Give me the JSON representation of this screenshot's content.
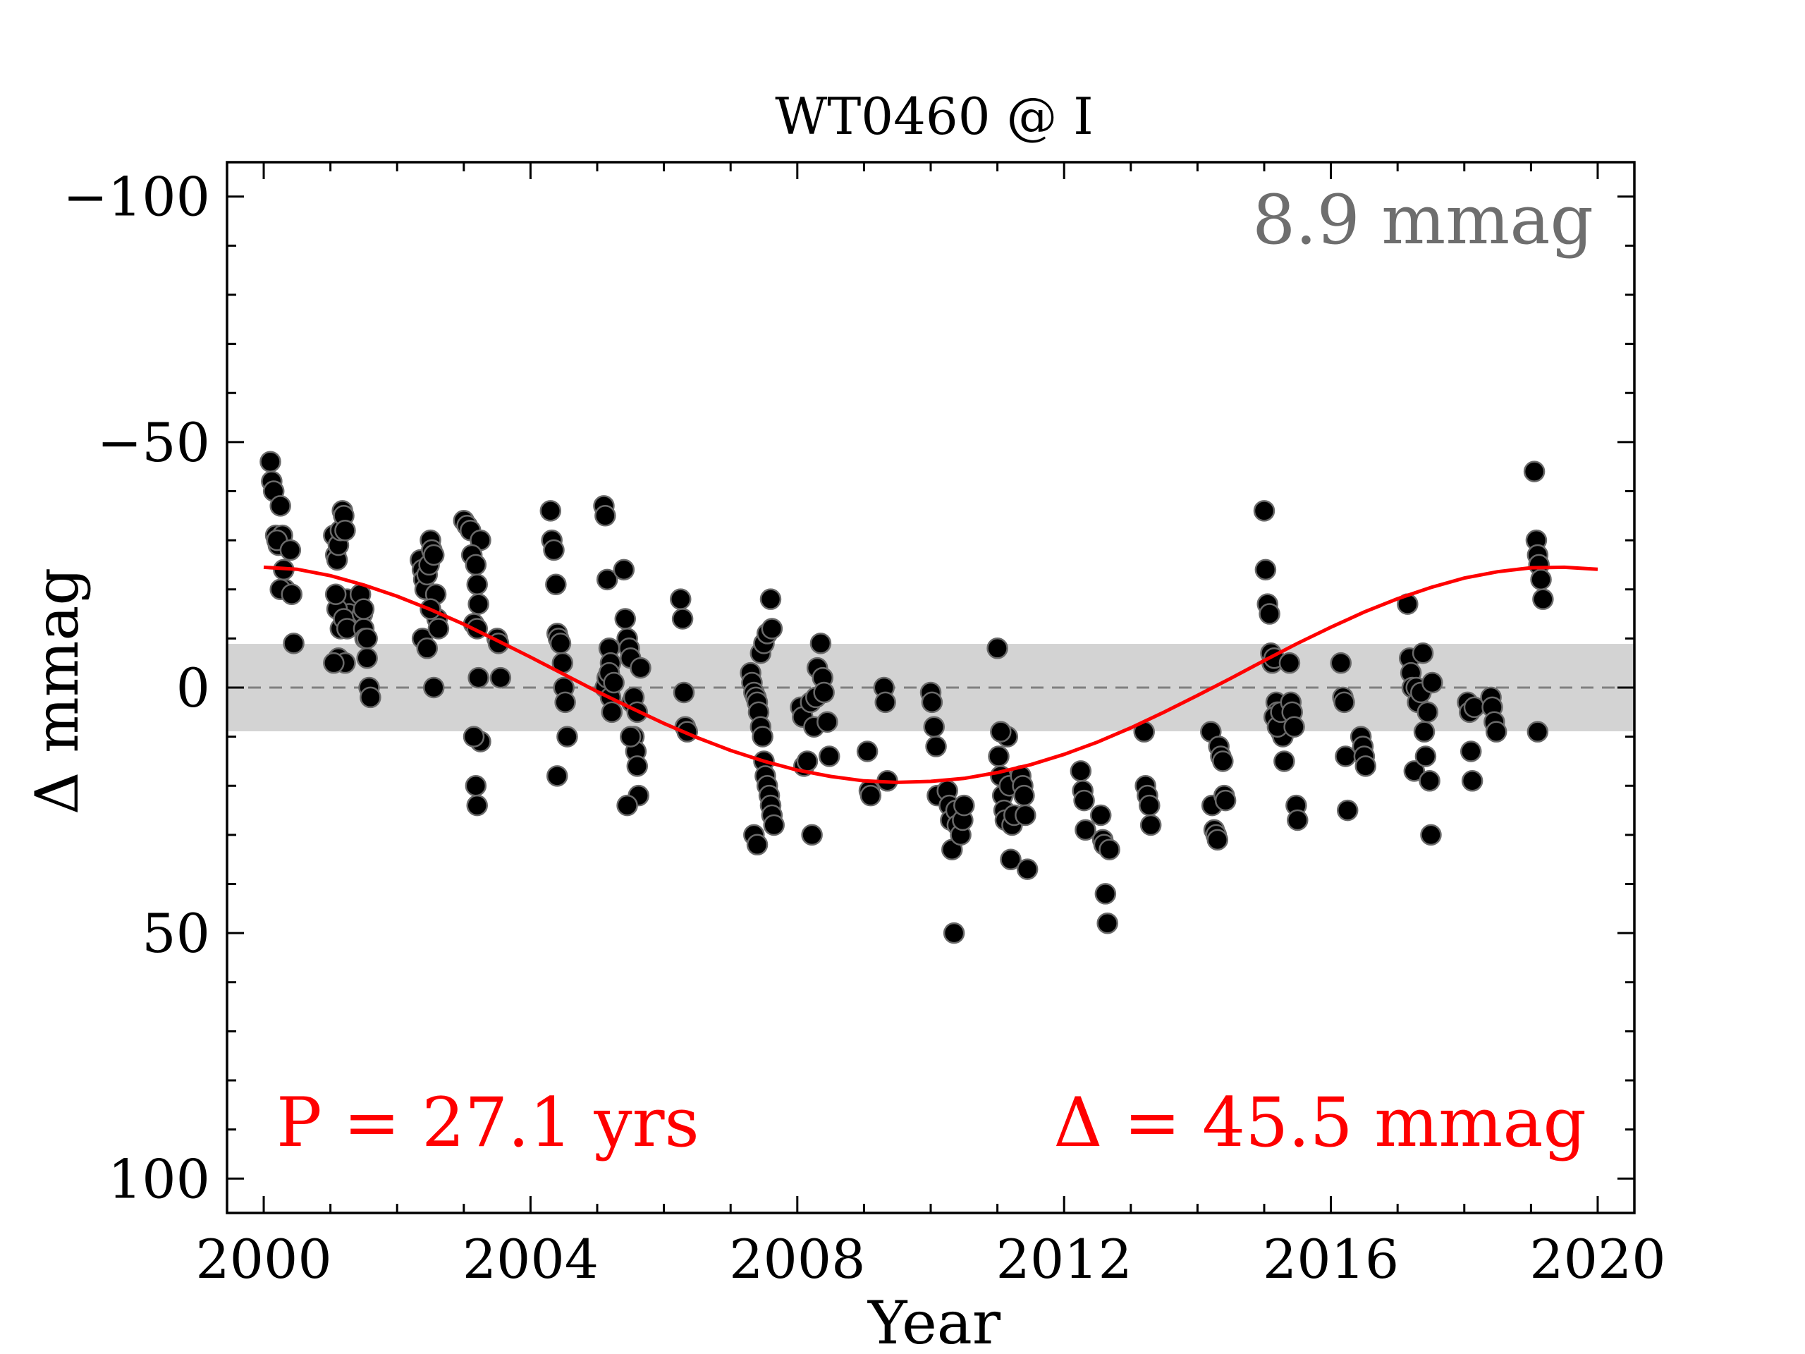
{
  "chart_data": {
    "type": "scatter",
    "title": "WT0460 @ I",
    "xlabel": "Year",
    "ylabel": "Δ  mmag",
    "xlim": [
      1999.45,
      2020.55
    ],
    "ylim": [
      107,
      -107
    ],
    "y_inverted": true,
    "x_ticks": [
      2000,
      2004,
      2008,
      2012,
      2016,
      2020
    ],
    "x_tick_labels": [
      "2000",
      "2004",
      "2008",
      "2012",
      "2016",
      "2020"
    ],
    "y_ticks": [
      -100,
      -50,
      0,
      50,
      100
    ],
    "y_tick_labels": [
      "−100",
      "−50",
      "0",
      "50",
      "100"
    ],
    "grid": false,
    "band": {
      "low": -8.9,
      "high": 8.9,
      "label": "8.9 mmag",
      "color": "#d3d3d3",
      "label_color": "#6e6e6e"
    },
    "zero_line": {
      "y": 0,
      "color": "#808080",
      "style": "dashed"
    },
    "fit": {
      "color": "#ff0000",
      "period_label": "P = 27.1 yrs",
      "amplitude_label": "Δ = 45.5 mmag",
      "x": [
        2000.0,
        2000.5,
        2001.0,
        2001.5,
        2002.0,
        2002.5,
        2003.0,
        2003.5,
        2004.0,
        2004.5,
        2005.0,
        2005.5,
        2006.0,
        2006.5,
        2007.0,
        2007.5,
        2008.0,
        2008.5,
        2009.0,
        2009.5,
        2010.0,
        2010.5,
        2011.0,
        2011.5,
        2012.0,
        2012.5,
        2013.0,
        2013.5,
        2014.0,
        2014.5,
        2015.0,
        2015.5,
        2016.0,
        2016.5,
        2017.0,
        2017.5,
        2018.0,
        2018.5,
        2019.0,
        2019.5,
        2020.0
      ],
      "y": [
        -24.5,
        -24.1,
        -22.8,
        -20.9,
        -18.6,
        -15.9,
        -12.9,
        -9.6,
        -6.2,
        -2.7,
        0.8,
        4.1,
        7.3,
        10.2,
        12.8,
        15.0,
        16.8,
        18.1,
        19.0,
        19.3,
        19.1,
        18.5,
        17.3,
        15.7,
        13.6,
        11.1,
        8.2,
        5.0,
        1.6,
        -1.9,
        -5.5,
        -9.0,
        -12.3,
        -15.4,
        -18.1,
        -20.4,
        -22.3,
        -23.6,
        -24.4,
        -24.5,
        -24.1
      ]
    },
    "series": [
      {
        "marker_color": "#000000",
        "x": [
          2000.1,
          2000.12,
          2000.15,
          2000.18,
          2000.2,
          2000.22,
          2000.25,
          2000.28,
          2000.3,
          2000.32,
          2000.2,
          2000.25,
          2000.4,
          2000.42,
          2000.45,
          2001.05,
          2001.08,
          2001.1,
          2001.12,
          2001.15,
          2001.18,
          2001.2,
          2001.22,
          2001.25,
          2001.28,
          2001.3,
          2001.1,
          2001.15,
          2001.2,
          2001.25,
          2001.12,
          2001.22,
          2001.05,
          2001.08,
          2001.45,
          2001.48,
          2001.5,
          2001.52,
          2001.55,
          2001.58,
          2001.6,
          2001.5,
          2001.55,
          2002.35,
          2002.38,
          2002.4,
          2002.42,
          2002.45,
          2002.48,
          2002.5,
          2002.52,
          2002.55,
          2002.58,
          2002.6,
          2002.38,
          2002.45,
          2002.5,
          2002.55,
          2002.62,
          2003.0,
          2003.05,
          2003.1,
          2003.15,
          2003.2,
          2003.22,
          2003.25,
          2003.12,
          2003.18,
          2003.2,
          2003.22,
          2003.25,
          2003.15,
          2003.18,
          2003.2,
          2003.5,
          2003.52,
          2003.55,
          2004.3,
          2004.32,
          2004.35,
          2004.38,
          2004.4,
          2004.42,
          2004.45,
          2004.48,
          2004.5,
          2004.52,
          2004.55,
          2004.4,
          2005.1,
          2005.12,
          2005.15,
          2005.18,
          2005.2,
          2005.12,
          2005.15,
          2005.18,
          2005.2,
          2005.22,
          2005.25,
          2005.4,
          2005.42,
          2005.45,
          2005.48,
          2005.5,
          2005.52,
          2005.55,
          2005.58,
          2005.6,
          2005.62,
          2005.45,
          2005.5,
          2005.55,
          2005.6,
          2005.65,
          2006.25,
          2006.28,
          2006.3,
          2006.32,
          2006.35,
          2007.3,
          2007.32,
          2007.35,
          2007.38,
          2007.4,
          2007.42,
          2007.45,
          2007.48,
          2007.5,
          2007.52,
          2007.55,
          2007.58,
          2007.6,
          2007.62,
          2007.65,
          2007.35,
          2007.4,
          2007.45,
          2007.5,
          2007.55,
          2007.6,
          2007.62,
          2008.05,
          2008.08,
          2008.1,
          2008.15,
          2008.2,
          2008.25,
          2008.28,
          2008.3,
          2008.35,
          2008.38,
          2008.4,
          2008.45,
          2008.48,
          2008.22,
          2009.05,
          2009.08,
          2009.1,
          2009.3,
          2009.32,
          2009.35,
          2010.0,
          2010.02,
          2010.05,
          2010.08,
          2010.1,
          2010.25,
          2010.28,
          2010.3,
          2010.32,
          2010.35,
          2010.38,
          2010.4,
          2010.45,
          2010.48,
          2010.5,
          2011.0,
          2011.02,
          2011.05,
          2011.08,
          2011.1,
          2011.12,
          2011.15,
          2011.18,
          2011.2,
          2011.22,
          2011.25,
          2011.05,
          2011.35,
          2011.38,
          2011.4,
          2011.42,
          2011.45,
          2012.25,
          2012.28,
          2012.3,
          2012.32,
          2012.55,
          2012.58,
          2012.6,
          2012.62,
          2012.65,
          2012.68,
          2013.2,
          2013.22,
          2013.25,
          2013.28,
          2013.3,
          2014.2,
          2014.22,
          2014.25,
          2014.28,
          2014.3,
          2014.32,
          2014.35,
          2014.38,
          2014.4,
          2014.42,
          2015.0,
          2015.02,
          2015.05,
          2015.08,
          2015.1,
          2015.12,
          2015.15,
          2015.18,
          2015.2,
          2015.22,
          2015.25,
          2015.28,
          2015.3,
          2015.15,
          2015.2,
          2015.25,
          2015.38,
          2015.4,
          2015.42,
          2015.45,
          2015.48,
          2015.5,
          2016.15,
          2016.18,
          2016.2,
          2016.22,
          2016.25,
          2016.45,
          2016.48,
          2016.5,
          2016.52,
          2017.15,
          2017.18,
          2017.2,
          2017.22,
          2017.25,
          2017.28,
          2017.3,
          2017.35,
          2017.38,
          2017.4,
          2017.42,
          2017.45,
          2017.48,
          2017.5,
          2017.52,
          2018.05,
          2018.08,
          2018.1,
          2018.12,
          2018.15,
          2018.4,
          2018.42,
          2018.45,
          2018.48,
          2019.05,
          2019.08,
          2019.1,
          2019.12,
          2019.15,
          2019.18,
          2019.1
        ],
        "y": [
          -46,
          -42,
          -40,
          -31,
          -30,
          -29,
          -37,
          -31,
          -24,
          -20,
          -30,
          -20,
          -28,
          -19,
          -9,
          -31,
          -27,
          -26,
          -29,
          -32,
          -36,
          -35,
          -32,
          -18,
          -15,
          -13,
          -16,
          -12,
          -14,
          -12,
          -6,
          -5,
          -5,
          -19,
          -19,
          -15,
          -12,
          -10,
          -6,
          0,
          2,
          -16,
          -10,
          -26,
          -24,
          -22,
          -20,
          -23,
          -25,
          -30,
          -28,
          -27,
          -19,
          -14,
          -10,
          -8,
          -16,
          0,
          -12,
          -34,
          -33,
          -32,
          -13,
          -12,
          -2,
          -30,
          -27,
          -25,
          -21,
          -17,
          11,
          10,
          20,
          24,
          -10,
          -9,
          -2,
          -36,
          -30,
          -28,
          -21,
          -11,
          -10,
          -9,
          -5,
          0,
          3,
          10,
          18,
          -37,
          -35,
          -22,
          -8,
          -5,
          0,
          -2,
          -3,
          2,
          5,
          -1,
          -24,
          -14,
          -10,
          -8,
          -6,
          3,
          10,
          13,
          16,
          22,
          24,
          10,
          2,
          5,
          -4,
          -18,
          -14,
          1,
          8,
          9,
          -3,
          -1,
          1,
          2,
          3,
          5,
          8,
          10,
          15,
          18,
          20,
          22,
          24,
          26,
          28,
          30,
          32,
          -7,
          -9,
          -11,
          -18,
          -12,
          4,
          6,
          16,
          15,
          3,
          8,
          2,
          -4,
          -9,
          -2,
          1,
          7,
          14,
          30,
          13,
          21,
          22,
          0,
          3,
          19,
          1,
          3,
          8,
          12,
          22,
          21,
          24,
          27,
          33,
          50,
          25,
          28,
          30,
          27,
          24,
          -8,
          14,
          18,
          22,
          25,
          27,
          10,
          20,
          35,
          28,
          26,
          9,
          18,
          20,
          22,
          26,
          37,
          17,
          21,
          23,
          29,
          26,
          31,
          32,
          42,
          48,
          33,
          9,
          20,
          22,
          24,
          28,
          9,
          24,
          29,
          30,
          31,
          12,
          14,
          15,
          22,
          23,
          -36,
          -24,
          -17,
          -15,
          -7,
          -5,
          -6,
          3,
          5,
          7,
          9,
          10,
          15,
          6,
          8,
          5,
          -5,
          3,
          5,
          8,
          24,
          27,
          -5,
          2,
          3,
          14,
          25,
          10,
          12,
          14,
          16,
          -17,
          -6,
          -3,
          0,
          17,
          0,
          3,
          1,
          -7,
          9,
          14,
          5,
          19,
          30,
          -1,
          3,
          5,
          13,
          19,
          4,
          2,
          4,
          7,
          9,
          -44,
          -30,
          -27,
          -25,
          -22,
          -18,
          9
        ]
      }
    ]
  }
}
